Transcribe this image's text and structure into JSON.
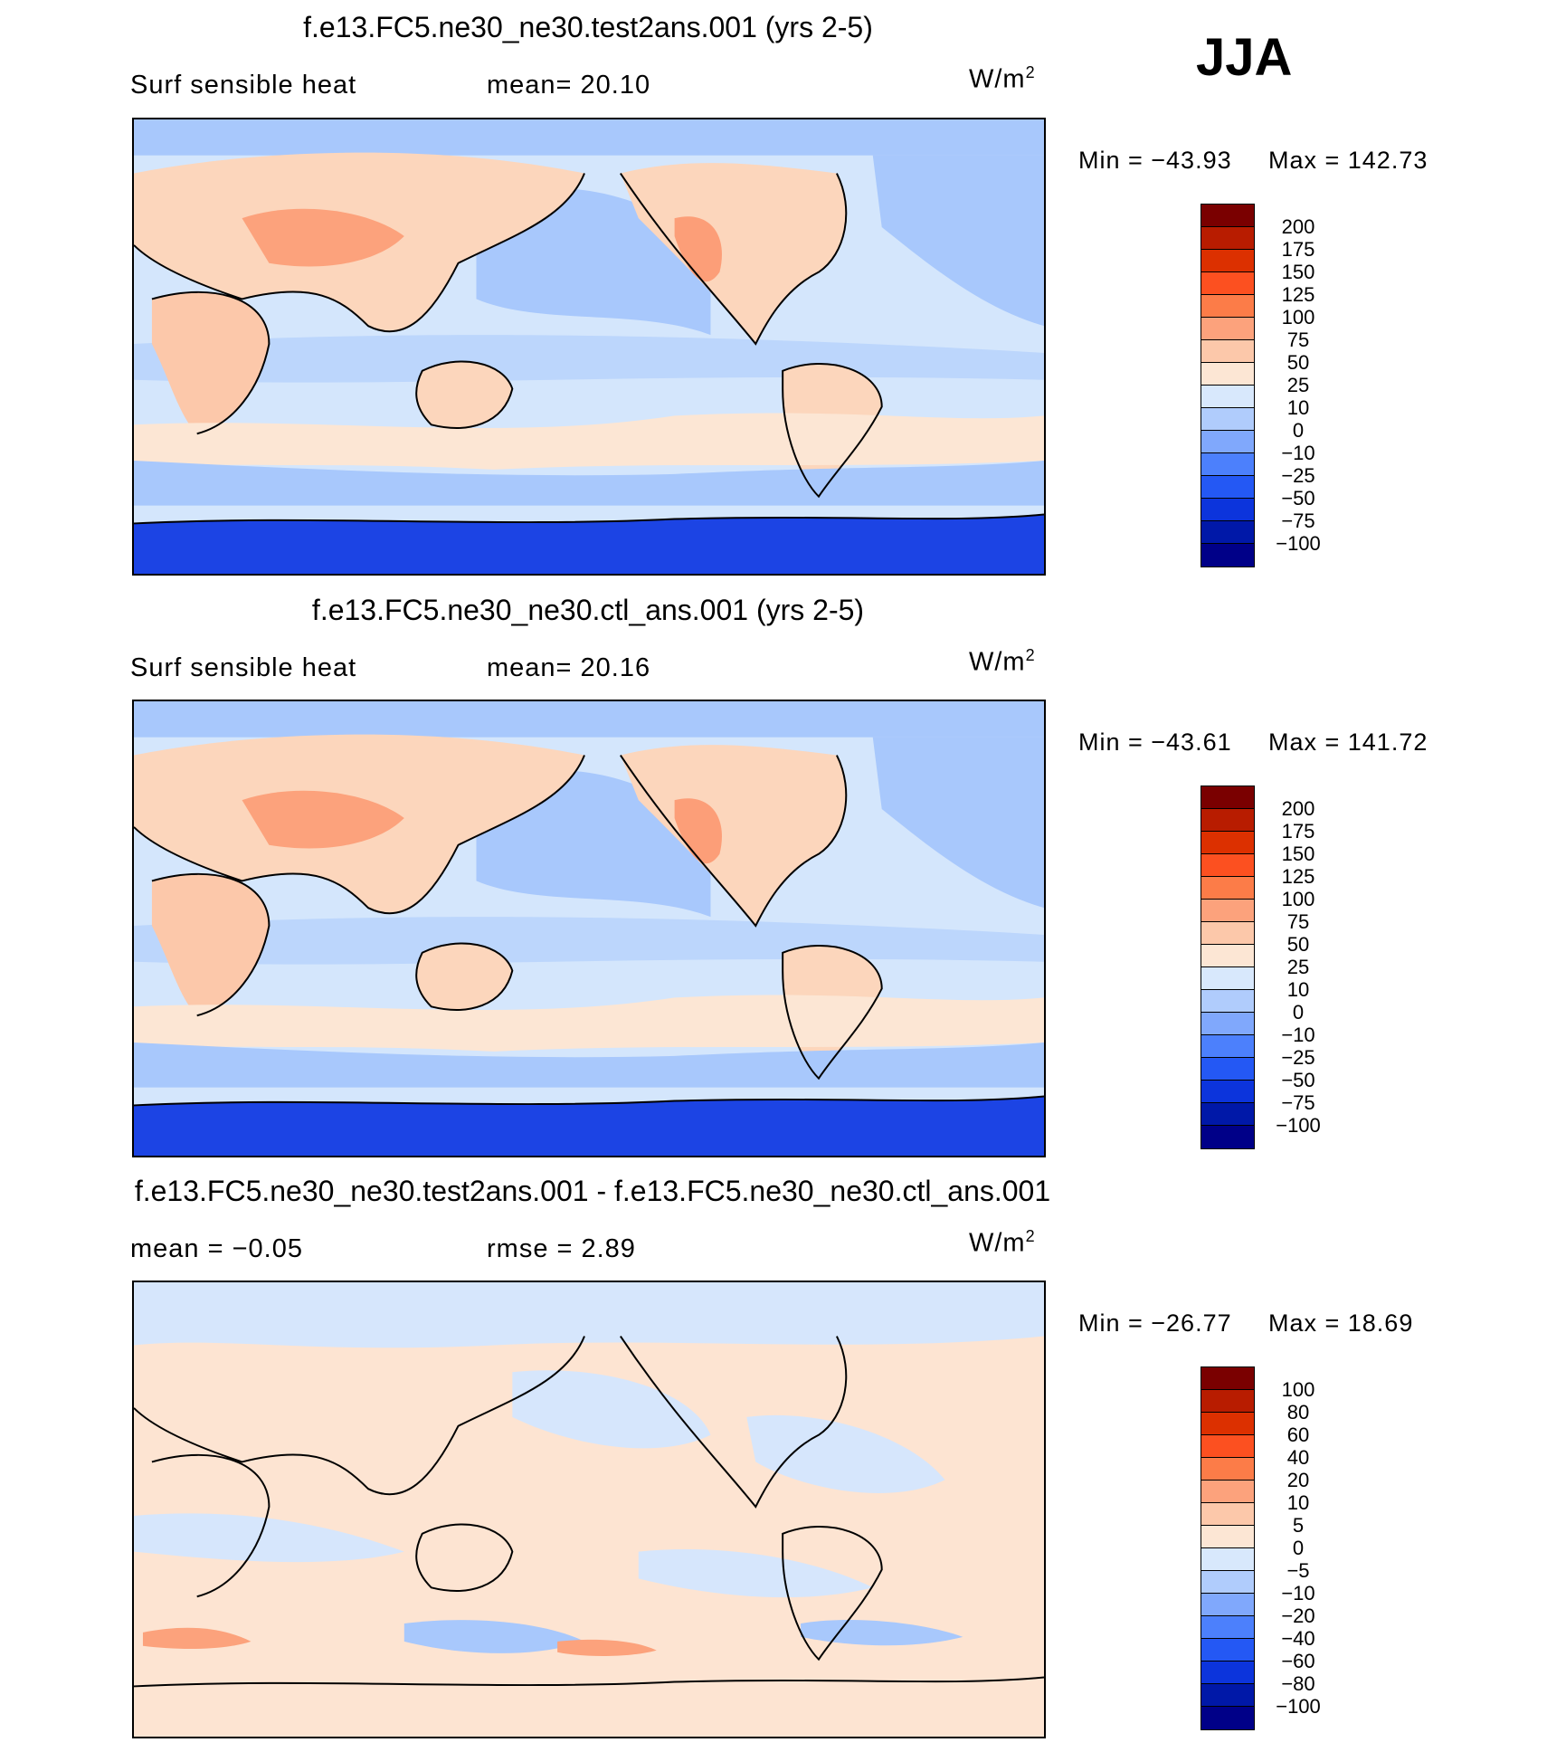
{
  "season": "JJA",
  "panels": [
    {
      "title": "f.e13.FC5.ne30_ne30.test2ans.001 (yrs 2-5)",
      "left_label": "Surf  sensible  heat",
      "right_label": "mean=   20.10",
      "units": "W/m",
      "units_exp": "2",
      "min_label": "Min  =  −43.93",
      "max_label": "Max  =  142.73",
      "colorbar_labels": [
        "200",
        "175",
        "150",
        "125",
        "100",
        "75",
        "50",
        "25",
        "10",
        "0",
        "−10",
        "−25",
        "−50",
        "−75",
        "−100"
      ]
    },
    {
      "title": "f.e13.FC5.ne30_ne30.ctl_ans.001 (yrs 2-5)",
      "left_label": "Surf  sensible  heat",
      "right_label": "mean=   20.16",
      "units": "W/m",
      "units_exp": "2",
      "min_label": "Min  =  −43.61",
      "max_label": "Max  =  141.72",
      "colorbar_labels": [
        "200",
        "175",
        "150",
        "125",
        "100",
        "75",
        "50",
        "25",
        "10",
        "0",
        "−10",
        "−25",
        "−50",
        "−75",
        "−100"
      ]
    },
    {
      "title": "f.e13.FC5.ne30_ne30.test2ans.001 - f.e13.FC5.ne30_ne30.ctl_ans.001",
      "left_label": "mean  =   −0.05",
      "right_label": "rmse  =     2.89",
      "units": "W/m",
      "units_exp": "2",
      "min_label": "Min  =  −26.77",
      "max_label": "Max  =    18.69",
      "colorbar_labels": [
        "100",
        "80",
        "60",
        "40",
        "20",
        "10",
        "5",
        "0",
        "−5",
        "−10",
        "−20",
        "−40",
        "−60",
        "−80",
        "−100"
      ]
    }
  ],
  "colors": {
    "scale": [
      "#7a0000",
      "#b81c00",
      "#dc3000",
      "#fc5020",
      "#fc7c48",
      "#fca27c",
      "#fcc8aa",
      "#fce6d4",
      "#d8e8fc",
      "#b0ccfc",
      "#80a8fc",
      "#4c80fc",
      "#2458f4",
      "#0c34dc",
      "#0018a8",
      "#000088"
    ],
    "ocean_warm": "#d4e6fc",
    "ocean_cool": "#a8c8fc",
    "land_warm": "#fcd6bc",
    "land_hot": "#fc9e78",
    "antarctic": "#1c44e4",
    "diff_pos": "#fde4d2",
    "diff_neg": "#d6e6fc"
  }
}
